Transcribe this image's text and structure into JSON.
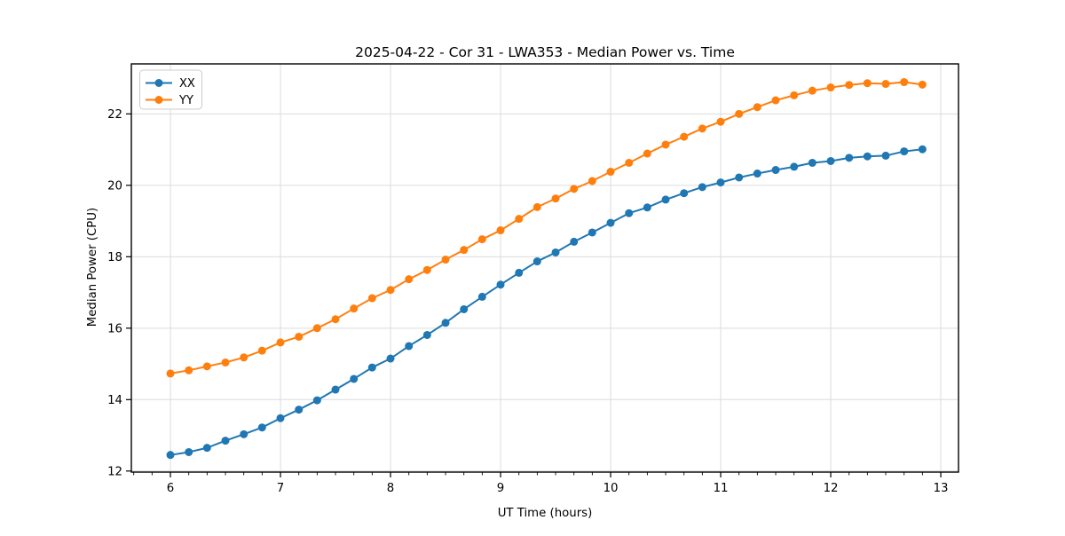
{
  "chart_data": {
    "type": "line",
    "title": "2025-04-22 - Cor 31 - LWA353 - Median Power vs. Time",
    "xlabel": "UT Time (hours)",
    "ylabel": "Median Power (CPU)",
    "xlim": [
      5.645,
      13.161
    ],
    "ylim": [
      11.97,
      23.4
    ],
    "x_ticks": [
      6,
      7,
      8,
      9,
      10,
      11,
      12,
      13
    ],
    "y_ticks": [
      12,
      14,
      16,
      18,
      20,
      22
    ],
    "x_minor_interval": 0.1667,
    "grid": "major",
    "legend_position": "upper-left",
    "background_color": "#ffffff",
    "grid_color": "#dcdcdc",
    "spine_color": "#000000",
    "x": [
      6.0,
      6.167,
      6.333,
      6.5,
      6.667,
      6.833,
      7.0,
      7.167,
      7.333,
      7.5,
      7.667,
      7.833,
      8.0,
      8.167,
      8.333,
      8.5,
      8.667,
      8.833,
      9.0,
      9.167,
      9.333,
      9.5,
      9.667,
      9.833,
      10.0,
      10.167,
      10.333,
      10.5,
      10.667,
      10.833,
      11.0,
      11.167,
      11.333,
      11.5,
      11.667,
      11.833,
      12.0,
      12.167,
      12.333,
      12.5,
      12.667,
      12.833
    ],
    "series": [
      {
        "name": "XX",
        "color": "#1f77b4",
        "values": [
          12.45,
          12.53,
          12.65,
          12.85,
          13.03,
          13.22,
          13.48,
          13.72,
          13.98,
          14.28,
          14.58,
          14.9,
          15.15,
          15.5,
          15.81,
          16.15,
          16.53,
          16.88,
          17.22,
          17.55,
          17.87,
          18.12,
          18.42,
          18.68,
          18.95,
          19.22,
          19.38,
          19.6,
          19.78,
          19.95,
          20.08,
          20.22,
          20.33,
          20.43,
          20.52,
          20.63,
          20.68,
          20.77,
          20.81,
          20.83,
          20.95,
          21.01
        ]
      },
      {
        "name": "YY",
        "color": "#ff7f0e",
        "values": [
          14.73,
          14.82,
          14.93,
          15.04,
          15.18,
          15.37,
          15.6,
          15.76,
          16.0,
          16.25,
          16.55,
          16.84,
          17.07,
          17.37,
          17.63,
          17.92,
          18.19,
          18.49,
          18.74,
          19.06,
          19.39,
          19.63,
          19.9,
          20.12,
          20.38,
          20.63,
          20.89,
          21.14,
          21.36,
          21.59,
          21.78,
          22.0,
          22.19,
          22.38,
          22.52,
          22.65,
          22.74,
          22.81,
          22.86,
          22.84,
          22.89,
          22.82
        ]
      }
    ]
  }
}
